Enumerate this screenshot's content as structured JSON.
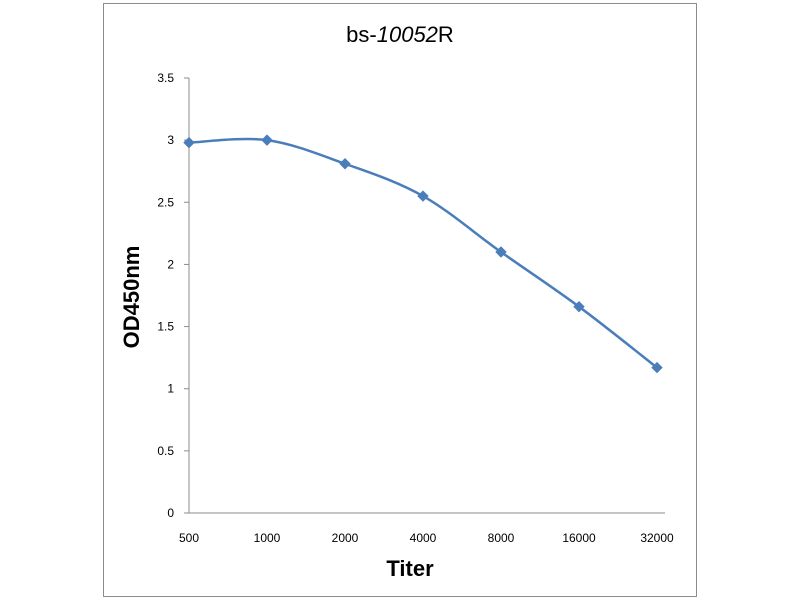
{
  "chart_data": {
    "type": "line",
    "title_prefix": "bs-",
    "title_number": "10052",
    "title_suffix": "R",
    "xlabel": "Titer",
    "ylabel": "OD450nm",
    "categories": [
      "500",
      "1000",
      "2000",
      "4000",
      "8000",
      "16000",
      "32000"
    ],
    "series": [
      {
        "values": [
          2.98,
          3.0,
          2.81,
          2.55,
          2.1,
          1.66,
          1.17
        ]
      }
    ],
    "ylim": [
      0,
      3.5
    ],
    "yticks": [
      "0",
      "0.5",
      "1",
      "1.5",
      "2",
      "2.5",
      "3",
      "3.5"
    ],
    "grid": false,
    "line_color": "#4a7ebb",
    "marker": "diamond"
  }
}
